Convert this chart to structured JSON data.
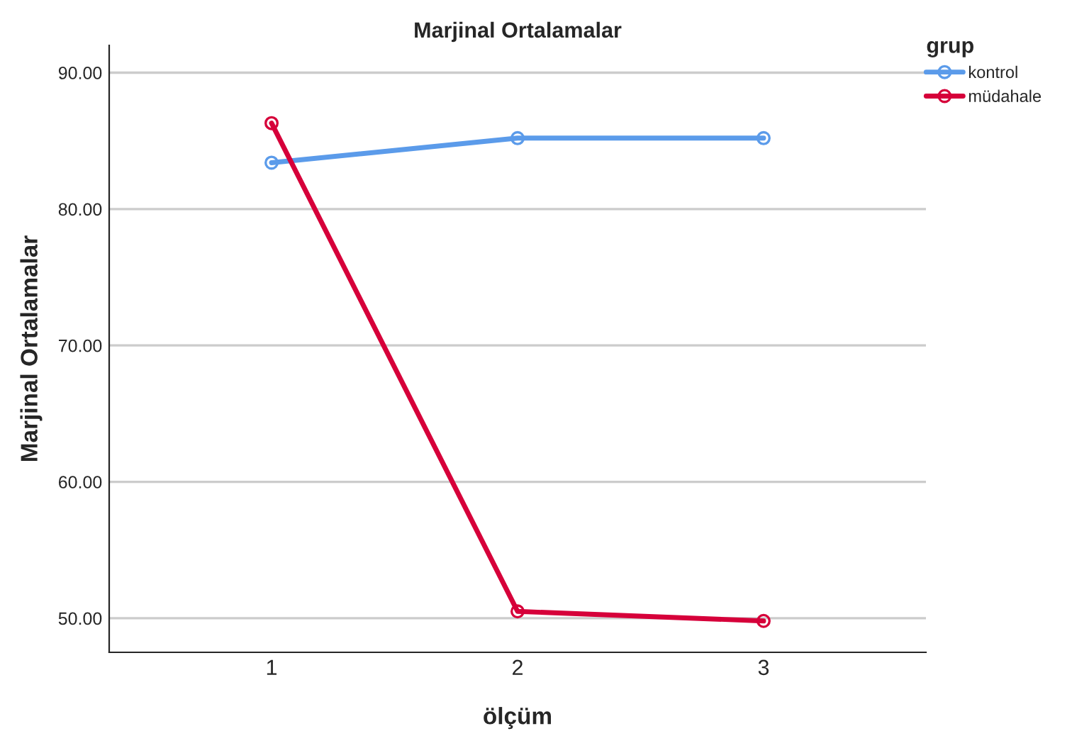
{
  "chart_data": {
    "type": "line",
    "title": "Marjinal Ortalamalar",
    "xlabel": "ölçüm",
    "ylabel": "Marjinal Ortalamalar",
    "legend_title": "grup",
    "x": [
      1,
      2,
      3
    ],
    "series": [
      {
        "name": "kontrol",
        "color": "#5b9bea",
        "values": [
          83.4,
          85.2,
          85.2
        ]
      },
      {
        "name": "müdahale",
        "color": "#d6003a",
        "values": [
          86.3,
          50.5,
          49.8
        ]
      }
    ],
    "xlim": [
      0.34,
      3.66
    ],
    "xticks": [
      1,
      2,
      3
    ],
    "ylim": [
      47.5,
      92
    ],
    "yticks": [
      {
        "value": 50,
        "label": "50.00"
      },
      {
        "value": 60,
        "label": "60.00"
      },
      {
        "value": 70,
        "label": "70.00"
      },
      {
        "value": 80,
        "label": "80.00"
      },
      {
        "value": 90,
        "label": "90.00"
      }
    ],
    "grid": "y",
    "legend": "top right",
    "marker": "circle",
    "line_style": "solid"
  }
}
